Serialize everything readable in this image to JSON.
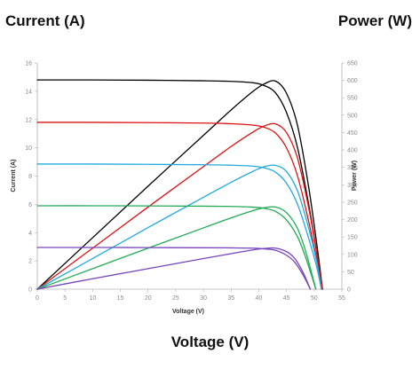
{
  "labels": {
    "left_outer": "Current (A)",
    "right_outer": "Power (W)",
    "bottom_outer": "Voltage (V)"
  },
  "chart_data": {
    "type": "line",
    "xlabel": "Voltage (V)",
    "ylabel": "Current (A)",
    "y2label": "Power (W)",
    "xlim": [
      0,
      55
    ],
    "ylim": [
      0,
      16
    ],
    "y2lim": [
      0,
      650
    ],
    "xticks": [
      "0",
      "5",
      "10",
      "15",
      "20",
      "25",
      "30",
      "35",
      "40",
      "45",
      "50",
      "55"
    ],
    "yticks": [
      "0",
      "2",
      "4",
      "6",
      "8",
      "10",
      "12",
      "14",
      "16"
    ],
    "y2ticks": [
      "0",
      "50",
      "100",
      "150",
      "200",
      "250",
      "300",
      "350",
      "400",
      "450",
      "500",
      "550",
      "600",
      "650"
    ],
    "grid": false,
    "legend": "none",
    "series": [
      {
        "color": "#000000",
        "axis": "left",
        "x": [
          0,
          10,
          20,
          30,
          35,
          39,
          41,
          43,
          45,
          47,
          49,
          50.5,
          51.5
        ],
        "y": [
          14.8,
          14.8,
          14.78,
          14.74,
          14.7,
          14.6,
          14.4,
          13.9,
          12.5,
          10.0,
          6.0,
          2.5,
          0
        ]
      },
      {
        "color": "#000000",
        "axis": "right",
        "x": [
          0,
          10,
          20,
          30,
          35,
          39,
          41,
          43,
          45,
          47,
          49,
          50.5,
          51.5
        ],
        "y": [
          0,
          148,
          296,
          442,
          515,
          569,
          590,
          598,
          563,
          470,
          294,
          126,
          0
        ]
      },
      {
        "color": "#dd1111",
        "axis": "left",
        "x": [
          0,
          10,
          20,
          30,
          35,
          39,
          41,
          43,
          45,
          47,
          49,
          50.5,
          51.5
        ],
        "y": [
          11.8,
          11.8,
          11.78,
          11.75,
          11.7,
          11.6,
          11.45,
          11.05,
          10.0,
          8.0,
          4.8,
          2.0,
          0
        ]
      },
      {
        "color": "#dd1111",
        "axis": "right",
        "x": [
          0,
          10,
          20,
          30,
          35,
          39,
          41,
          43,
          45,
          47,
          49,
          50.5,
          51.5
        ],
        "y": [
          0,
          118,
          236,
          352,
          410,
          452,
          469,
          475,
          450,
          376,
          235,
          101,
          0
        ]
      },
      {
        "color": "#22aadd",
        "axis": "left",
        "x": [
          0,
          10,
          20,
          30,
          35,
          39,
          41,
          43,
          45,
          47,
          49,
          50.5,
          51.3
        ],
        "y": [
          8.85,
          8.85,
          8.83,
          8.8,
          8.77,
          8.7,
          8.58,
          8.28,
          7.5,
          6.0,
          3.6,
          1.5,
          0
        ]
      },
      {
        "color": "#22aadd",
        "axis": "right",
        "x": [
          0,
          10,
          20,
          30,
          35,
          39,
          41,
          43,
          45,
          47,
          49,
          50.5,
          51.3
        ],
        "y": [
          0,
          88,
          177,
          264,
          307,
          339,
          352,
          356,
          338,
          282,
          176,
          76,
          0
        ]
      },
      {
        "color": "#22aa55",
        "axis": "left",
        "x": [
          0,
          10,
          20,
          30,
          35,
          39,
          41,
          43,
          45,
          47,
          48.5,
          50.3
        ],
        "y": [
          5.9,
          5.9,
          5.89,
          5.87,
          5.85,
          5.8,
          5.72,
          5.5,
          4.9,
          3.7,
          2.2,
          0
        ]
      },
      {
        "color": "#22aa55",
        "axis": "right",
        "x": [
          0,
          10,
          20,
          30,
          35,
          39,
          41,
          43,
          45,
          47,
          48.5,
          50.3
        ],
        "y": [
          0,
          59,
          118,
          176,
          205,
          226,
          234,
          236,
          220,
          174,
          107,
          0
        ]
      },
      {
        "color": "#7744bb",
        "axis": "left",
        "x": [
          0,
          10,
          20,
          30,
          35,
          39,
          41,
          43,
          45,
          46.5,
          48,
          49.3
        ],
        "y": [
          2.95,
          2.95,
          2.94,
          2.93,
          2.92,
          2.9,
          2.85,
          2.75,
          2.4,
          1.9,
          1.0,
          0
        ]
      },
      {
        "color": "#7744bb",
        "axis": "right",
        "x": [
          0,
          10,
          20,
          30,
          35,
          39,
          41,
          43,
          45,
          46.5,
          48,
          49.3
        ],
        "y": [
          0,
          30,
          59,
          88,
          102,
          113,
          117,
          118,
          108,
          88,
          48,
          0
        ]
      }
    ]
  }
}
